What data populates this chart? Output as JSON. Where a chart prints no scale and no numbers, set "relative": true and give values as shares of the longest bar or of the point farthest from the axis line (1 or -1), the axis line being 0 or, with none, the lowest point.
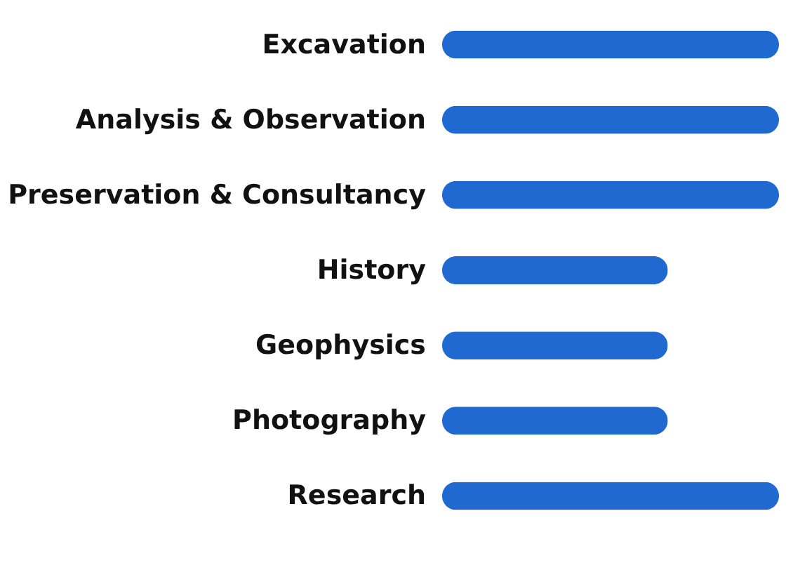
{
  "chart_data": {
    "type": "bar",
    "orientation": "horizontal",
    "relative": true,
    "categories": [
      "Excavation",
      "Analysis & Observation",
      "Preservation & Consultancy",
      "History",
      "Geophysics",
      "Photography",
      "Research"
    ],
    "values": [
      1,
      1,
      1,
      0.67,
      0.67,
      0.67,
      1
    ],
    "color": "#1f69d0"
  }
}
